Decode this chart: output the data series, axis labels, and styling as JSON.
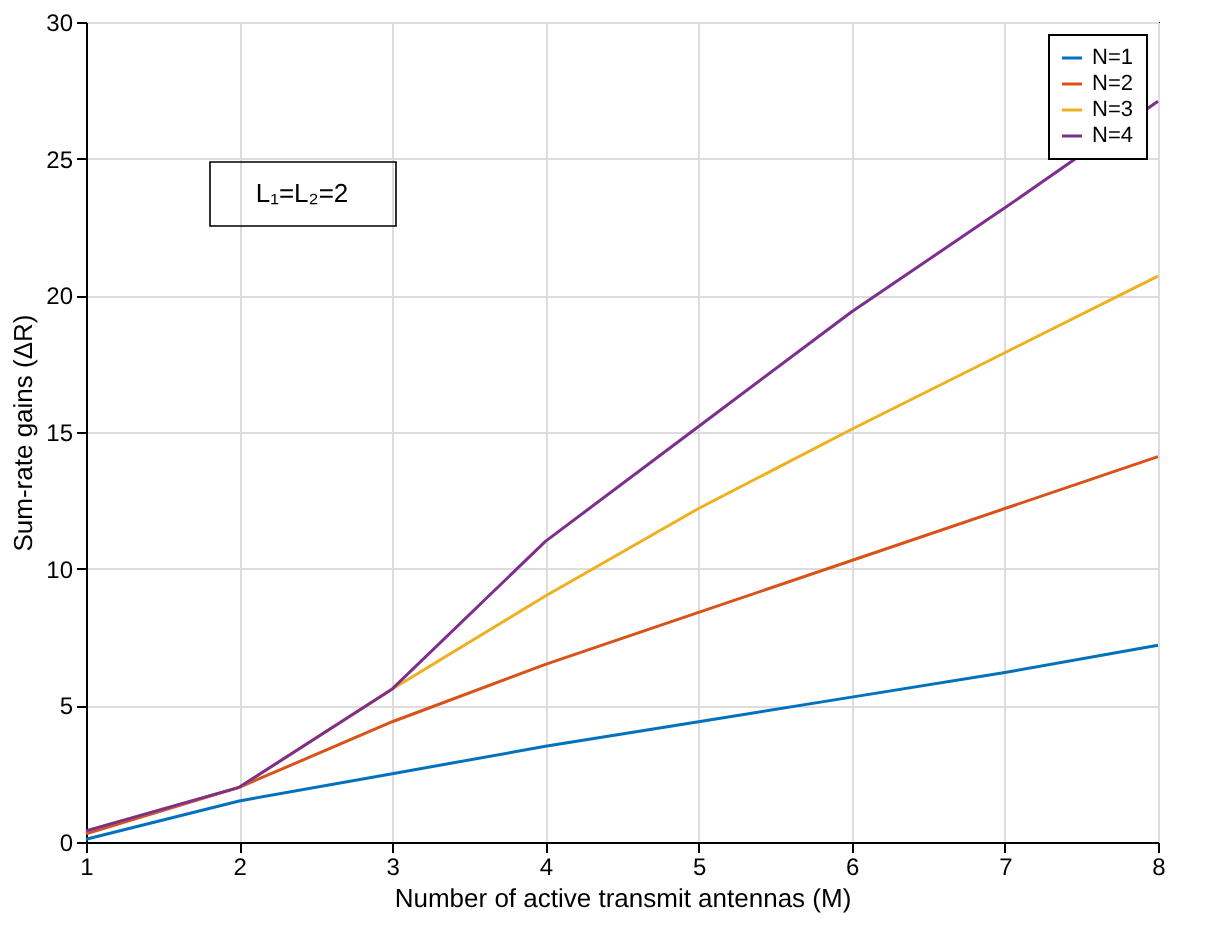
{
  "chart_data": {
    "type": "line",
    "xlabel": "Number of active transmit antennas (M)",
    "ylabel": "Sum-rate gains (ΔR)",
    "x": [
      1,
      2,
      3,
      4,
      5,
      6,
      7,
      8
    ],
    "series": [
      {
        "name": "N=1",
        "color": "#0072bd",
        "values": [
          0.1,
          1.5,
          2.5,
          3.5,
          4.4,
          5.3,
          6.2,
          7.2
        ]
      },
      {
        "name": "N=2",
        "color": "#d95319",
        "values": [
          0.3,
          2.0,
          4.4,
          6.5,
          8.4,
          10.3,
          12.2,
          14.1
        ]
      },
      {
        "name": "N=3",
        "color": "#edb120",
        "values": [
          0.4,
          2.0,
          5.6,
          9.0,
          12.2,
          15.1,
          17.9,
          20.7
        ]
      },
      {
        "name": "N=4",
        "color": "#7e2f8e",
        "values": [
          0.4,
          2.0,
          5.6,
          11.0,
          15.2,
          19.4,
          23.2,
          27.1
        ]
      }
    ],
    "annotations": [
      "L₁=L₂=2"
    ],
    "xlim": [
      1,
      8
    ],
    "xticks": [
      1,
      2,
      3,
      4,
      5,
      6,
      7,
      8
    ],
    "ylim": [
      0,
      30
    ],
    "yticks": [
      0,
      5,
      10,
      15,
      20,
      25,
      30
    ],
    "grid": true,
    "legend": "top right",
    "line_style": "solid",
    "marker": "none"
  }
}
